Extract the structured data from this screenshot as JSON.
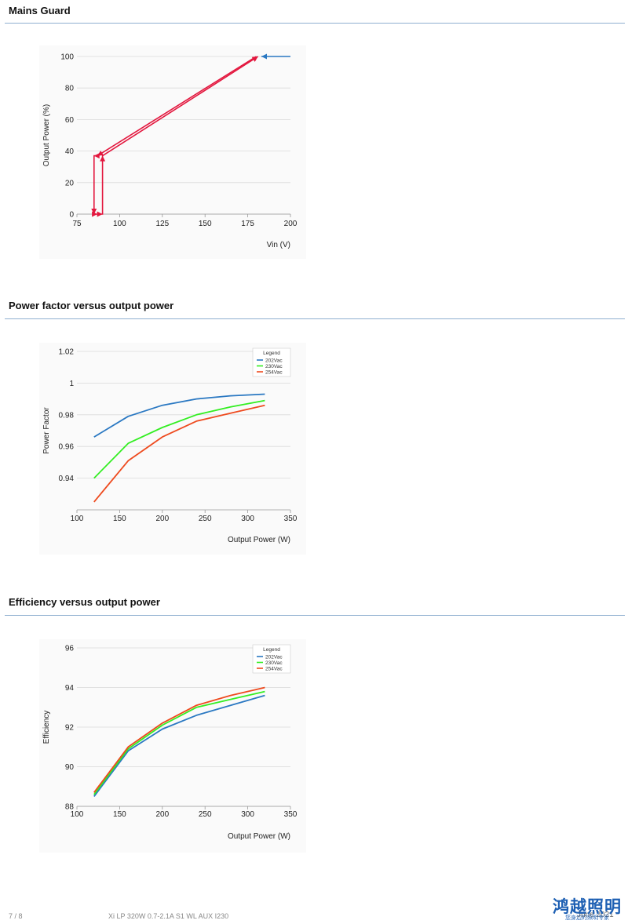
{
  "sections": [
    {
      "title": "Mains Guard"
    },
    {
      "title": "Power factor versus output power"
    },
    {
      "title": "Efficiency versus output power"
    }
  ],
  "footer": {
    "page": "7 / 8",
    "product": "Xi LP 320W 0.7-2.1A S1 WL AUX I230",
    "date": "June 2021",
    "logo_text": "鸿越照明",
    "logo_sub": "您身边的照明专家"
  },
  "chart_data": [
    {
      "type": "line",
      "ylabel": "Output Power (%)",
      "xlabel": "Vin (V)",
      "xlim": [
        75,
        200
      ],
      "ylim": [
        0,
        100
      ],
      "x_ticks": [
        75,
        100,
        125,
        150,
        175,
        200
      ],
      "y_ticks": [
        0,
        20,
        40,
        60,
        80,
        100
      ],
      "grid": "horizontal",
      "series": [
        {
          "color": "#2a78c2",
          "points": [
            [
              200,
              100
            ],
            [
              183,
              100
            ]
          ]
        },
        {
          "color": "#e3173e",
          "points": [
            [
              180,
              100
            ],
            [
              87,
              37
            ],
            [
              85,
              37
            ],
            [
              85,
              0
            ],
            [
              87,
              0
            ]
          ]
        },
        {
          "color": "#e3173e",
          "points": [
            [
              88,
              0
            ],
            [
              90,
              0
            ],
            [
              90,
              37
            ],
            [
              181,
              100
            ]
          ]
        }
      ]
    },
    {
      "type": "line",
      "ylabel": "Power Factor",
      "xlabel": "Output Power (W)",
      "xlim": [
        100,
        350
      ],
      "ylim": [
        0.92,
        1.02
      ],
      "x_ticks": [
        100,
        150,
        200,
        250,
        300,
        350
      ],
      "y_ticks": [
        0.94,
        0.96,
        0.98,
        1,
        1.02
      ],
      "grid": "horizontal",
      "legend": {
        "title": "Legend",
        "position": "top-right"
      },
      "x": [
        120,
        160,
        200,
        240,
        280,
        320
      ],
      "series": [
        {
          "name": "202Vac",
          "color": "#2a78c2",
          "values": [
            0.966,
            0.979,
            0.986,
            0.99,
            0.992,
            0.993
          ]
        },
        {
          "name": "230Vac",
          "color": "#33ee22",
          "values": [
            0.94,
            0.962,
            0.972,
            0.98,
            0.985,
            0.989
          ]
        },
        {
          "name": "254Vac",
          "color": "#ee4a1e",
          "values": [
            0.925,
            0.951,
            0.966,
            0.976,
            0.981,
            0.986
          ]
        }
      ]
    },
    {
      "type": "line",
      "ylabel": "Efficiency",
      "xlabel": "Output Power (W)",
      "xlim": [
        100,
        350
      ],
      "ylim": [
        88,
        96
      ],
      "x_ticks": [
        100,
        150,
        200,
        250,
        300,
        350
      ],
      "y_ticks": [
        88,
        90,
        92,
        94,
        96
      ],
      "grid": "horizontal",
      "legend": {
        "title": "Legend",
        "position": "top-right"
      },
      "x": [
        120,
        160,
        200,
        240,
        280,
        320
      ],
      "series": [
        {
          "name": "202Vac",
          "color": "#2a78c2",
          "values": [
            88.5,
            90.8,
            91.9,
            92.6,
            93.1,
            93.6
          ]
        },
        {
          "name": "230Vac",
          "color": "#33ee22",
          "values": [
            88.6,
            90.9,
            92.1,
            93.0,
            93.4,
            93.8
          ]
        },
        {
          "name": "254Vac",
          "color": "#ee4a1e",
          "values": [
            88.7,
            91.0,
            92.2,
            93.1,
            93.6,
            94.0
          ]
        }
      ]
    }
  ]
}
